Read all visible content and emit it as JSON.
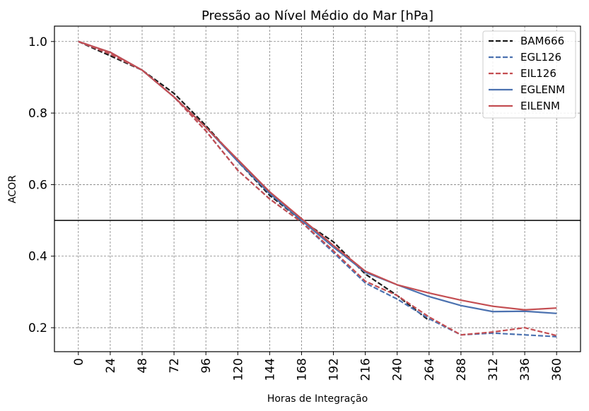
{
  "chart_data": {
    "type": "line",
    "title": "Pressão ao Nível Médio do Mar [hPa]",
    "xlabel": "Horas de Integração",
    "ylabel": "ACOR",
    "x": [
      0,
      24,
      48,
      72,
      96,
      120,
      144,
      168,
      192,
      216,
      240,
      264,
      288,
      312,
      336,
      360
    ],
    "x_tick_labels": [
      "0",
      "24",
      "48",
      "72",
      "96",
      "120",
      "144",
      "168",
      "192",
      "216",
      "240",
      "264",
      "288",
      "312",
      "336",
      "360"
    ],
    "y_tick_values": [
      0.2,
      0.4,
      0.6,
      0.8,
      1.0
    ],
    "y_tick_labels": [
      "0.2",
      "0.4",
      "0.6",
      "0.8",
      "1.0"
    ],
    "xlim": [
      -18,
      378
    ],
    "ylim": [
      0.133,
      1.043
    ],
    "reference_line_y": 0.5,
    "grid": true,
    "legend_position": "top-right",
    "series": [
      {
        "name": "BAM666",
        "style": "dashed",
        "color": "#1a1a1a",
        "values": [
          1.0,
          0.96,
          0.92,
          0.855,
          0.765,
          0.665,
          0.57,
          0.5,
          0.44,
          0.35,
          0.29,
          0.22,
          null,
          null,
          null,
          null
        ]
      },
      {
        "name": "EGL126",
        "style": "dashed",
        "color": "#4c72b0",
        "values": [
          1.0,
          0.965,
          0.92,
          0.845,
          0.75,
          0.64,
          0.56,
          0.495,
          0.41,
          0.325,
          0.28,
          0.225,
          0.18,
          0.185,
          0.18,
          0.175
        ]
      },
      {
        "name": "EIL126",
        "style": "dashed",
        "color": "#c44e52",
        "values": [
          1.0,
          0.965,
          0.92,
          0.845,
          0.75,
          0.64,
          0.56,
          0.495,
          0.415,
          0.33,
          0.29,
          0.23,
          0.18,
          0.188,
          0.2,
          0.178
        ]
      },
      {
        "name": "EGLENM",
        "style": "solid",
        "color": "#4c72b0",
        "values": [
          1.0,
          0.97,
          0.92,
          0.845,
          0.76,
          0.665,
          0.575,
          0.5,
          0.425,
          0.355,
          0.32,
          0.287,
          0.262,
          0.245,
          0.246,
          0.24
        ]
      },
      {
        "name": "EILENM",
        "style": "solid",
        "color": "#c44e52",
        "values": [
          1.0,
          0.97,
          0.92,
          0.845,
          0.76,
          0.67,
          0.58,
          0.505,
          0.43,
          0.358,
          0.32,
          0.297,
          0.277,
          0.26,
          0.25,
          0.255
        ]
      }
    ]
  }
}
